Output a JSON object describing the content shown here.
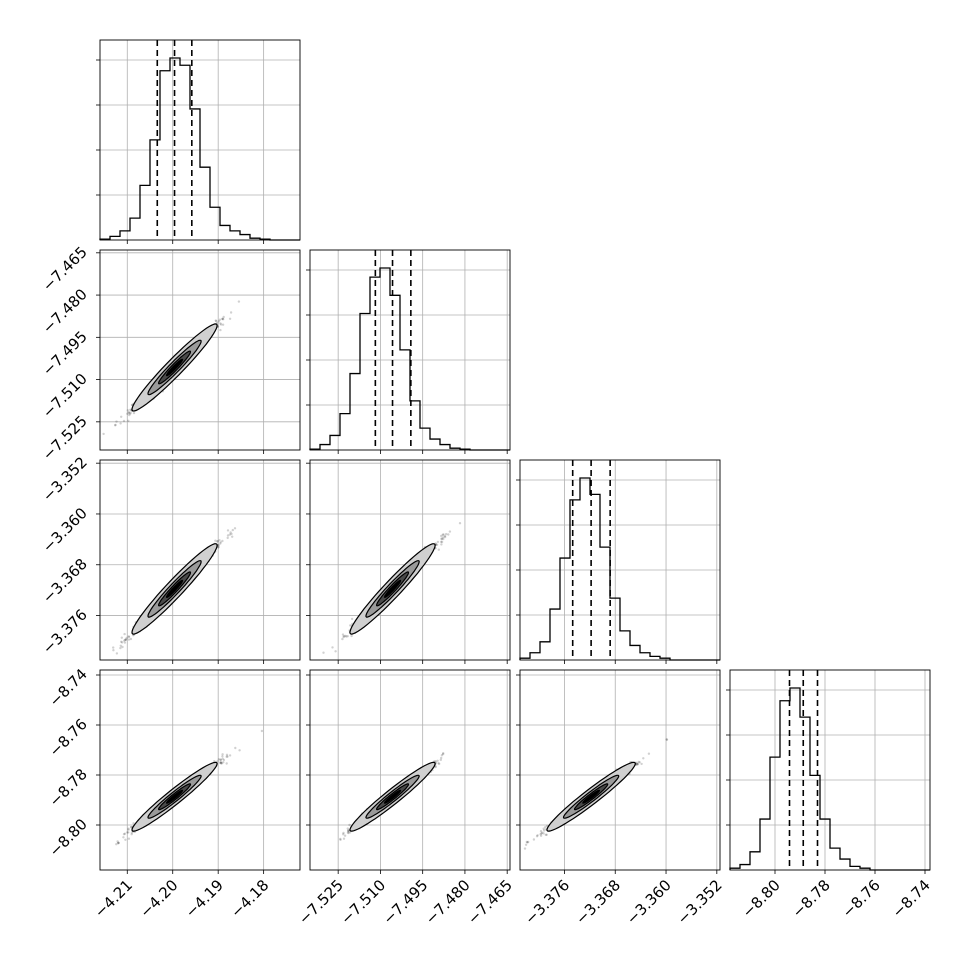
{
  "chart_data": {
    "type": "corner",
    "description_free": true,
    "parameters": [
      {
        "range": [
          -4.216,
          -4.172
        ],
        "ticks": [
          -4.21,
          -4.2,
          -4.19,
          -4.18
        ],
        "tick_labels": [
          "−4.21",
          "−4.20",
          "−4.19",
          "−4.18"
        ],
        "quantiles": [
          -4.2034,
          -4.1996,
          -4.1958
        ],
        "mean": -4.1996,
        "sd": 0.0039
      },
      {
        "range": [
          -7.535,
          -7.464
        ],
        "ticks": [
          -7.525,
          -7.51,
          -7.495,
          -7.48,
          -7.465
        ],
        "tick_labels": [
          "−7.525",
          "−7.510",
          "−7.495",
          "−7.480",
          "−7.465"
        ],
        "quantiles": [
          -7.5118,
          -7.5057,
          -7.4992
        ],
        "mean": -7.5057,
        "sd": 0.0063
      },
      {
        "range": [
          -3.383,
          -3.3515
        ],
        "ticks": [
          -3.376,
          -3.368,
          -3.36,
          -3.352
        ],
        "tick_labels": [
          "−3.376",
          "−3.368",
          "−3.360",
          "−3.352"
        ],
        "quantiles": [
          -3.3747,
          -3.3718,
          -3.3688
        ],
        "mean": -3.3718,
        "sd": 0.0029
      },
      {
        "range": [
          -8.818,
          -8.738
        ],
        "ticks": [
          -8.8,
          -8.78,
          -8.76,
          -8.74
        ],
        "tick_labels": [
          "−8.80",
          "−8.78",
          "−8.76",
          "−8.74"
        ],
        "quantiles": [
          -8.7942,
          -8.7887,
          -8.783
        ],
        "mean": -8.7887,
        "sd": 0.0056
      }
    ],
    "histograms": [
      [
        0.5,
        2,
        5,
        12,
        30,
        55,
        93,
        100,
        96,
        72,
        40,
        18,
        8,
        5,
        3,
        1,
        0.5,
        0,
        0,
        0
      ],
      [
        0.5,
        3,
        8,
        20,
        42,
        75,
        95,
        100,
        85,
        55,
        27,
        12,
        6,
        3,
        1,
        0.5,
        0,
        0,
        0,
        0
      ],
      [
        1,
        4,
        10,
        28,
        56,
        88,
        100,
        91,
        62,
        34,
        16,
        8,
        4,
        2,
        1,
        0,
        0,
        0,
        0,
        0
      ],
      [
        1,
        3,
        10,
        28,
        62,
        93,
        100,
        84,
        52,
        28,
        12,
        6,
        2,
        1,
        0,
        0,
        0,
        0,
        0,
        0
      ]
    ],
    "grid": true,
    "legend": "none"
  }
}
